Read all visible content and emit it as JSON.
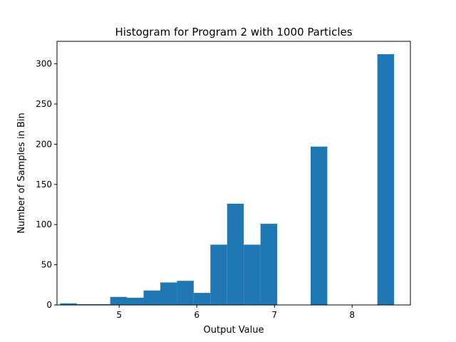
{
  "chart_data": {
    "type": "bar",
    "title": "Histogram for Program 2 with 1000 Particles",
    "xlabel": "Output Value",
    "ylabel": "Number of Samples in Bin",
    "xlim": [
      4.2,
      8.75
    ],
    "ylim": [
      0,
      328
    ],
    "xticks": [
      5,
      6,
      7,
      8
    ],
    "yticks": [
      0,
      50,
      100,
      150,
      200,
      250,
      300
    ],
    "grid": false,
    "legend": "none",
    "bar_color": "#1f77b4",
    "bins": [
      {
        "x0": 4.24,
        "x1": 4.455,
        "value": 2
      },
      {
        "x0": 4.455,
        "x1": 4.67,
        "value": 1
      },
      {
        "x0": 4.67,
        "x1": 4.885,
        "value": 1
      },
      {
        "x0": 4.885,
        "x1": 5.1,
        "value": 10
      },
      {
        "x0": 5.1,
        "x1": 5.315,
        "value": 9
      },
      {
        "x0": 5.315,
        "x1": 5.53,
        "value": 18
      },
      {
        "x0": 5.53,
        "x1": 5.745,
        "value": 28
      },
      {
        "x0": 5.745,
        "x1": 5.96,
        "value": 30
      },
      {
        "x0": 5.96,
        "x1": 6.175,
        "value": 15
      },
      {
        "x0": 6.175,
        "x1": 6.39,
        "value": 75
      },
      {
        "x0": 6.39,
        "x1": 6.605,
        "value": 126
      },
      {
        "x0": 6.605,
        "x1": 6.82,
        "value": 75
      },
      {
        "x0": 6.82,
        "x1": 7.035,
        "value": 101
      },
      {
        "x0": 7.035,
        "x1": 7.25,
        "value": 0
      },
      {
        "x0": 7.25,
        "x1": 7.465,
        "value": 0
      },
      {
        "x0": 7.465,
        "x1": 7.68,
        "value": 197
      },
      {
        "x0": 7.68,
        "x1": 7.895,
        "value": 0
      },
      {
        "x0": 7.895,
        "x1": 8.11,
        "value": 0
      },
      {
        "x0": 8.11,
        "x1": 8.325,
        "value": 0
      },
      {
        "x0": 8.325,
        "x1": 8.54,
        "value": 312
      }
    ]
  }
}
